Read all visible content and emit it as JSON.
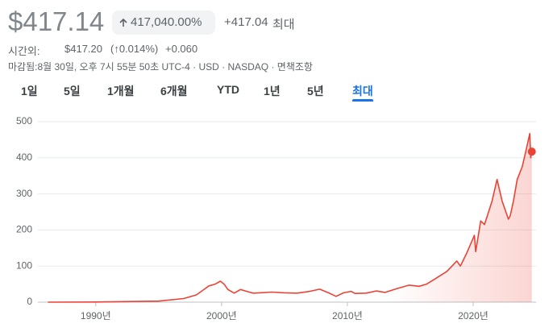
{
  "header": {
    "price": "$417.14",
    "change_percent": "417,040.00%",
    "change_amount": "+417.04",
    "period": "최대",
    "after_hours_label": "시간외:",
    "after_hours_price": "$417.20",
    "after_hours_percent": "(↑0.014%)",
    "after_hours_change": "+0.060",
    "closing_info": "마감됨:8월 30일, 오후 7시 55분 50초 UTC-4 · USD · NASDAQ · 면책조항"
  },
  "tabs": [
    "1일",
    "5일",
    "1개월",
    "6개월",
    "YTD",
    "1년",
    "5년",
    "최대"
  ],
  "chart_data": {
    "type": "line",
    "color": "#ea4335",
    "grid": true,
    "x": [
      1986.2,
      1990,
      1995,
      1997,
      1998,
      1999,
      1999.5,
      1999.9,
      2000.2,
      2000.5,
      2001,
      2001.5,
      2002,
      2002.5,
      2003,
      2004,
      2005,
      2006,
      2007,
      2007.8,
      2008.5,
      2009.1,
      2009.7,
      2010.3,
      2010.6,
      2011.5,
      2012.3,
      2013,
      2013.9,
      2014.9,
      2015.7,
      2016.3,
      2016.9,
      2017.9,
      2018.7,
      2018.98,
      2019.5,
      2020.1,
      2020.2,
      2020.6,
      2020.9,
      2021.5,
      2021.9,
      2022.3,
      2022.8,
      2022.95,
      2023.2,
      2023.5,
      2023.9,
      2024.2,
      2024.5,
      2024.58,
      2024.66
    ],
    "values": [
      0.1,
      0.5,
      3,
      10,
      20,
      45,
      50,
      58,
      50,
      35,
      25,
      35,
      30,
      25,
      26,
      28,
      26,
      25,
      30,
      36,
      26,
      16,
      26,
      30,
      24,
      25,
      31,
      27,
      37,
      47,
      44,
      50,
      63,
      85,
      114,
      100,
      137,
      185,
      140,
      225,
      215,
      280,
      340,
      280,
      230,
      240,
      280,
      340,
      375,
      420,
      467,
      400,
      417
    ],
    "xlim": [
      1985.4,
      2025.0
    ],
    "xticks": [
      {
        "value": 1990,
        "label": "1990년"
      },
      {
        "value": 2000,
        "label": "2000년"
      },
      {
        "value": 2010,
        "label": "2010년"
      },
      {
        "value": 2020,
        "label": "2020년"
      }
    ],
    "ylim": [
      0,
      500
    ],
    "yticks": [
      0,
      100,
      200,
      300,
      400,
      500
    ]
  }
}
